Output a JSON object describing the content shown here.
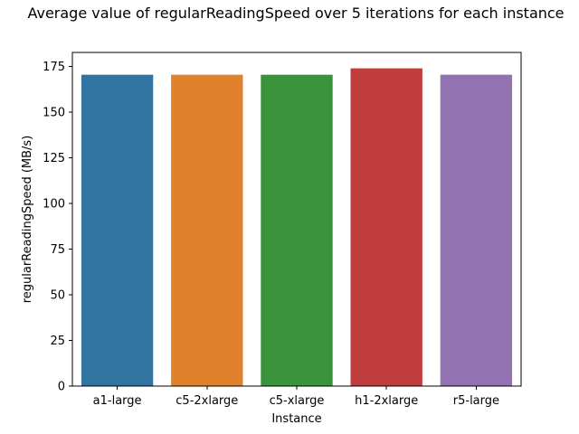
{
  "chart_data": {
    "type": "bar",
    "title": "Average value of regularReadingSpeed over 5 iterations for each instance",
    "xlabel": "Instance",
    "ylabel": "regularReadingSpeed (MB/s)",
    "categories": [
      "a1-large",
      "c5-2xlarge",
      "c5-xlarge",
      "h1-2xlarge",
      "r5-large"
    ],
    "values": [
      170.5,
      170.5,
      170.5,
      174,
      170.5
    ],
    "colors": [
      "#3274a1",
      "#e1812c",
      "#3a923a",
      "#c03d3e",
      "#9372b2"
    ],
    "ylim": [
      0,
      182.7
    ],
    "yticks": [
      0,
      25,
      50,
      75,
      100,
      125,
      150,
      175
    ],
    "grid": false,
    "legend": "none"
  }
}
